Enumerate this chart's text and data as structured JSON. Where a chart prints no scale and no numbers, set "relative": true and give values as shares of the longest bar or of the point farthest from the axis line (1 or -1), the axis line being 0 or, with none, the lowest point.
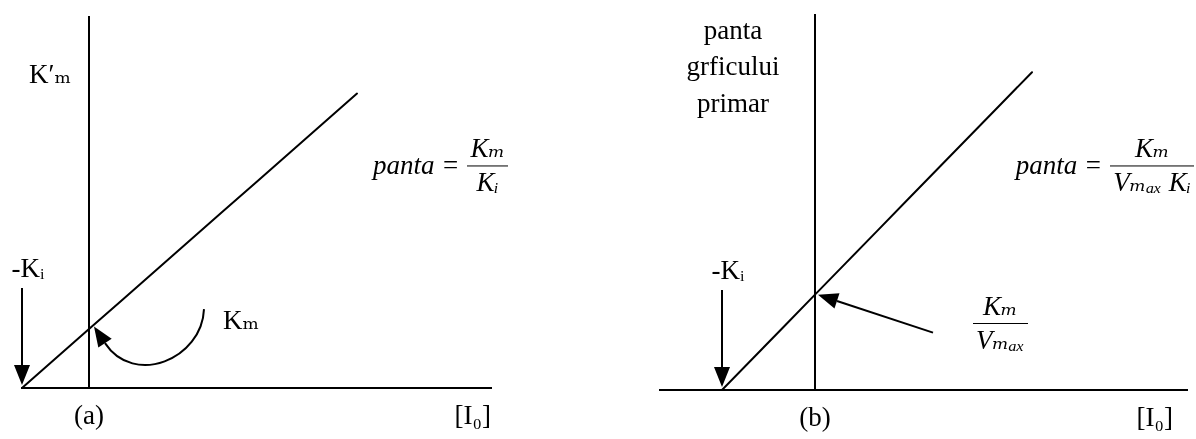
{
  "chart_data": [
    {
      "type": "line",
      "title": "(a)",
      "xlabel": "[I₀]",
      "ylabel": "K′ₘ",
      "relative": true,
      "color": "#000000",
      "categories": [
        null,
        null,
        null,
        null,
        null,
        null,
        null,
        null,
        null,
        null,
        null,
        null,
        null,
        null,
        null
      ],
      "values": [
        0,
        0.1,
        0.2,
        0.3,
        0.4,
        0.5,
        0.6,
        0.7,
        0.8,
        0.9,
        1,
        null,
        null,
        null,
        null
      ],
      "annotations": [
        "-Kᵢ",
        "Kₘ",
        "panta =",
        "Kₘ",
        "Kᵢ"
      ]
    },
    {
      "type": "line",
      "title": "(b)",
      "xlabel": "[I₀]",
      "ylabel": "panta grficului primar",
      "relative": true,
      "color": "#000000",
      "categories": [
        null,
        null,
        null,
        null,
        null,
        null,
        null,
        null,
        null,
        null,
        null,
        null,
        null,
        null,
        null,
        null,
        null,
        null
      ],
      "values": [
        null,
        null,
        0,
        0.1,
        0.2,
        0.3,
        0.4,
        0.5,
        0.6,
        0.7,
        0.8,
        0.9,
        1,
        null,
        null,
        null,
        null,
        null
      ],
      "annotations": [
        "-Kᵢ",
        "Kₘ",
        "Vₘₐₓ",
        "panta =",
        "Kₘ",
        "Vₘₐₓ Kᵢ"
      ]
    }
  ]
}
